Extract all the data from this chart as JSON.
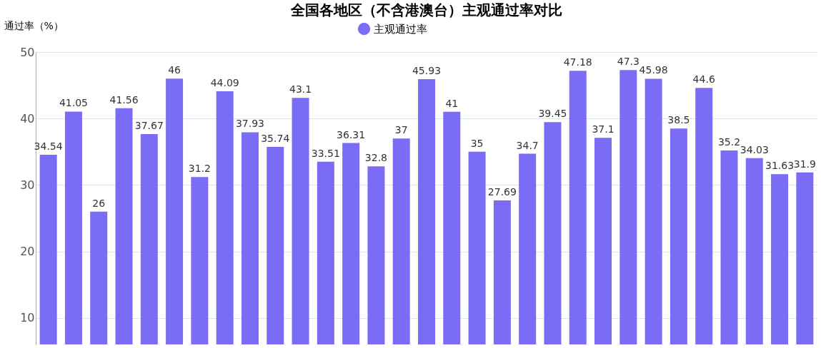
{
  "chart_data": {
    "type": "bar",
    "title": "全国各地区（不含港澳台）主观通过率对比",
    "ylabel": "通过率（%）",
    "categories": [
      null,
      null,
      null,
      null,
      null,
      null,
      null,
      null,
      null,
      null,
      null,
      null,
      null,
      null,
      null,
      null,
      null,
      null,
      null,
      null,
      null,
      null,
      null,
      null,
      null,
      null,
      null,
      null,
      null,
      null,
      null
    ],
    "series": [
      {
        "name": "主观通过率",
        "color": "#7b6cf6",
        "values": [
          34.54,
          41.05,
          26,
          41.56,
          37.67,
          46,
          31.2,
          44.09,
          37.93,
          35.74,
          43.1,
          33.51,
          36.31,
          32.8,
          37,
          45.93,
          41,
          35,
          27.69,
          34.7,
          39.45,
          47.18,
          37.1,
          47.3,
          45.98,
          38.5,
          44.6,
          35.2,
          34.03,
          31.63,
          31.9
        ]
      }
    ],
    "ylim": [
      6,
      50
    ],
    "yticks": [
      10,
      20,
      30,
      40,
      50
    ],
    "grid": "y",
    "legend": "top",
    "data_labels": true,
    "tick_labels": "y"
  }
}
